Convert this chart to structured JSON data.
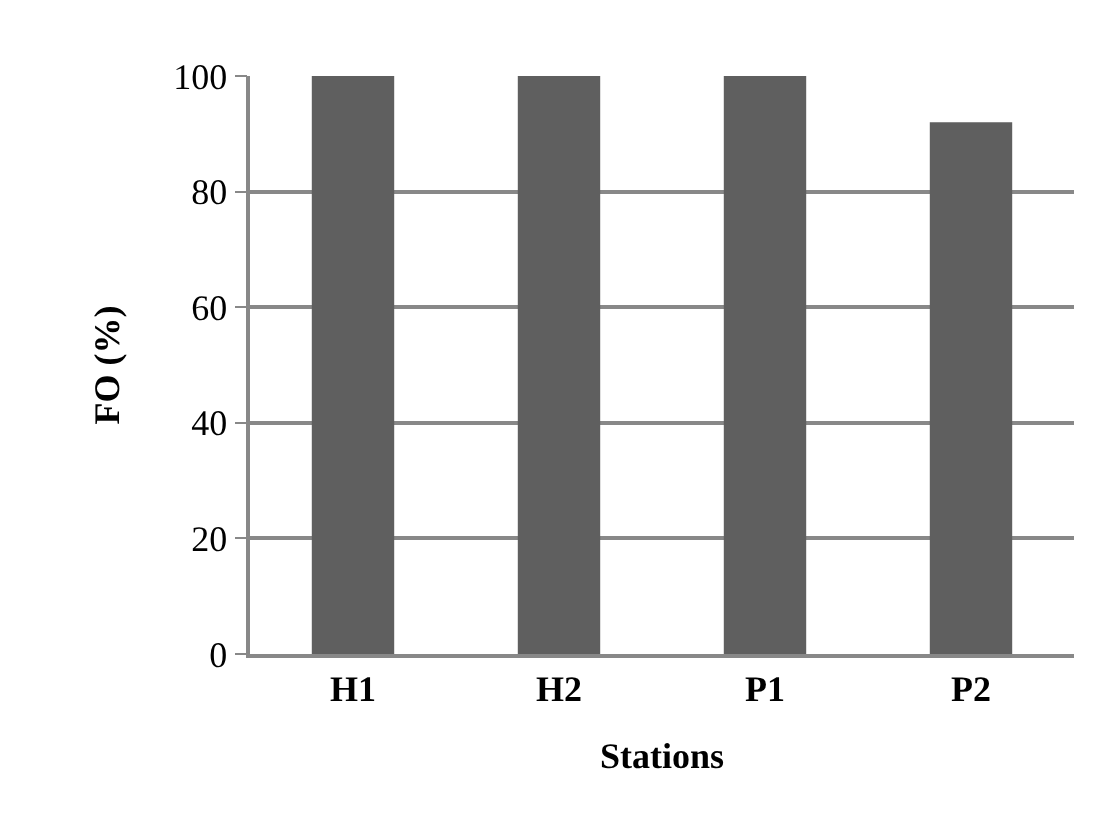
{
  "chart_data": {
    "type": "bar",
    "xlabel": "Stations",
    "ylabel": "FO (%)",
    "categories": [
      "H1",
      "H2",
      "P1",
      "P2"
    ],
    "values": [
      100,
      100,
      100,
      92
    ],
    "color": "#5f5f5f",
    "ylim": [
      0,
      100
    ],
    "yticks": [
      0,
      20,
      40,
      60,
      80,
      100
    ],
    "grid": "y"
  }
}
